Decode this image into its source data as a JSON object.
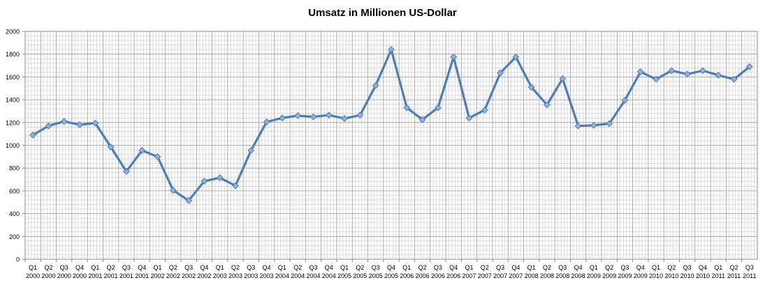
{
  "chart_data": {
    "type": "line",
    "title": "Umsatz in Millionen US-Dollar",
    "xlabel": "",
    "ylabel": "",
    "ylim": [
      0,
      2000
    ],
    "yticks": [
      0,
      200,
      400,
      600,
      800,
      1000,
      1200,
      1400,
      1600,
      1800,
      2000
    ],
    "grid": true,
    "categories": [
      [
        "Q1",
        "2000"
      ],
      [
        "Q2",
        "2000"
      ],
      [
        "Q3",
        "2000"
      ],
      [
        "Q4",
        "2000"
      ],
      [
        "Q1",
        "2001"
      ],
      [
        "Q2",
        "2001"
      ],
      [
        "Q3",
        "2001"
      ],
      [
        "Q4",
        "2001"
      ],
      [
        "Q1",
        "2002"
      ],
      [
        "Q2",
        "2002"
      ],
      [
        "Q3",
        "2002"
      ],
      [
        "Q4",
        "2002"
      ],
      [
        "Q1",
        "2003"
      ],
      [
        "Q2",
        "2003"
      ],
      [
        "Q3",
        "2003"
      ],
      [
        "Q4",
        "2003"
      ],
      [
        "Q1",
        "2004"
      ],
      [
        "Q2",
        "2004"
      ],
      [
        "Q3",
        "2004"
      ],
      [
        "Q4",
        "2004"
      ],
      [
        "Q1",
        "2005"
      ],
      [
        "Q2",
        "2005"
      ],
      [
        "Q3",
        "2005"
      ],
      [
        "Q4",
        "2005"
      ],
      [
        "Q1",
        "2006"
      ],
      [
        "Q2",
        "2006"
      ],
      [
        "Q3",
        "2006"
      ],
      [
        "Q4",
        "2006"
      ],
      [
        "Q1",
        "2007"
      ],
      [
        "Q2",
        "2007"
      ],
      [
        "Q3",
        "2007"
      ],
      [
        "Q4",
        "2007"
      ],
      [
        "Q1",
        "2008"
      ],
      [
        "Q2",
        "2008"
      ],
      [
        "Q3",
        "2008"
      ],
      [
        "Q4",
        "2008"
      ],
      [
        "Q1",
        "2009"
      ],
      [
        "Q2",
        "2009"
      ],
      [
        "Q3",
        "2009"
      ],
      [
        "Q4",
        "2009"
      ],
      [
        "Q1",
        "2010"
      ],
      [
        "Q2",
        "2010"
      ],
      [
        "Q3",
        "2010"
      ],
      [
        "Q4",
        "2010"
      ],
      [
        "Q1",
        "2011"
      ],
      [
        "Q2",
        "2011"
      ],
      [
        "Q3",
        "2011"
      ]
    ],
    "series": [
      {
        "color": "#4a7ebb",
        "values": [
          1090,
          1170,
          1210,
          1180,
          1195,
          985,
          770,
          955,
          900,
          605,
          515,
          685,
          715,
          645,
          955,
          1205,
          1240,
          1260,
          1250,
          1265,
          1235,
          1265,
          1525,
          1840,
          1330,
          1225,
          1330,
          1775,
          1240,
          1310,
          1635,
          1775,
          1510,
          1355,
          1585,
          1170,
          1175,
          1190,
          1395,
          1645,
          1580,
          1655,
          1625,
          1655,
          1615,
          1580,
          1690
        ]
      }
    ]
  }
}
